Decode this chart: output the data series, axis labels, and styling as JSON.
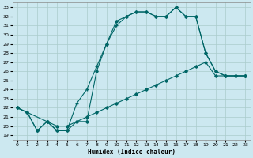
{
  "xlabel": "Humidex (Indice chaleur)",
  "bg_color": "#cce8f0",
  "grid_color": "#aacccc",
  "line_color": "#006666",
  "xlim": [
    -0.5,
    23.5
  ],
  "ylim": [
    18.5,
    33.5
  ],
  "yticks": [
    19,
    20,
    21,
    22,
    23,
    24,
    25,
    26,
    27,
    28,
    29,
    30,
    31,
    32,
    33
  ],
  "xticks": [
    0,
    1,
    2,
    3,
    4,
    5,
    6,
    7,
    8,
    9,
    10,
    11,
    12,
    13,
    14,
    15,
    16,
    17,
    18,
    19,
    20,
    21,
    22,
    23
  ],
  "line1_x": [
    0,
    1,
    2,
    3,
    4,
    5,
    6,
    7,
    8,
    9,
    10,
    11,
    12,
    13,
    14,
    15,
    16,
    17,
    18,
    19,
    20,
    21,
    22,
    23
  ],
  "line1_y": [
    22.0,
    21.5,
    19.5,
    20.5,
    19.5,
    19.5,
    20.5,
    20.5,
    26.0,
    29.0,
    31.5,
    32.0,
    32.5,
    32.5,
    32.0,
    32.0,
    33.0,
    32.0,
    32.0,
    28.0,
    26.0,
    25.5,
    25.5,
    25.5
  ],
  "line2_x": [
    0,
    3,
    4,
    5,
    6,
    7,
    8,
    9,
    10,
    11,
    12,
    13,
    14,
    15,
    16,
    17,
    18,
    19,
    20,
    21,
    22,
    23
  ],
  "line2_y": [
    22.0,
    20.5,
    19.5,
    19.5,
    22.5,
    24.0,
    26.5,
    29.0,
    31.0,
    32.0,
    32.5,
    32.5,
    32.0,
    32.0,
    33.0,
    32.0,
    32.0,
    28.0,
    26.0,
    25.5,
    25.5,
    25.5
  ],
  "line3_x": [
    0,
    1,
    2,
    3,
    4,
    5,
    6,
    7,
    8,
    9,
    10,
    11,
    12,
    13,
    14,
    15,
    16,
    17,
    18,
    19,
    20,
    21,
    22,
    23
  ],
  "line3_y": [
    22.0,
    21.5,
    19.5,
    20.5,
    20.0,
    20.0,
    20.5,
    21.0,
    21.5,
    22.0,
    22.5,
    23.0,
    23.5,
    24.0,
    24.5,
    25.0,
    25.5,
    26.0,
    26.5,
    27.0,
    25.5,
    25.5,
    25.5,
    25.5
  ]
}
